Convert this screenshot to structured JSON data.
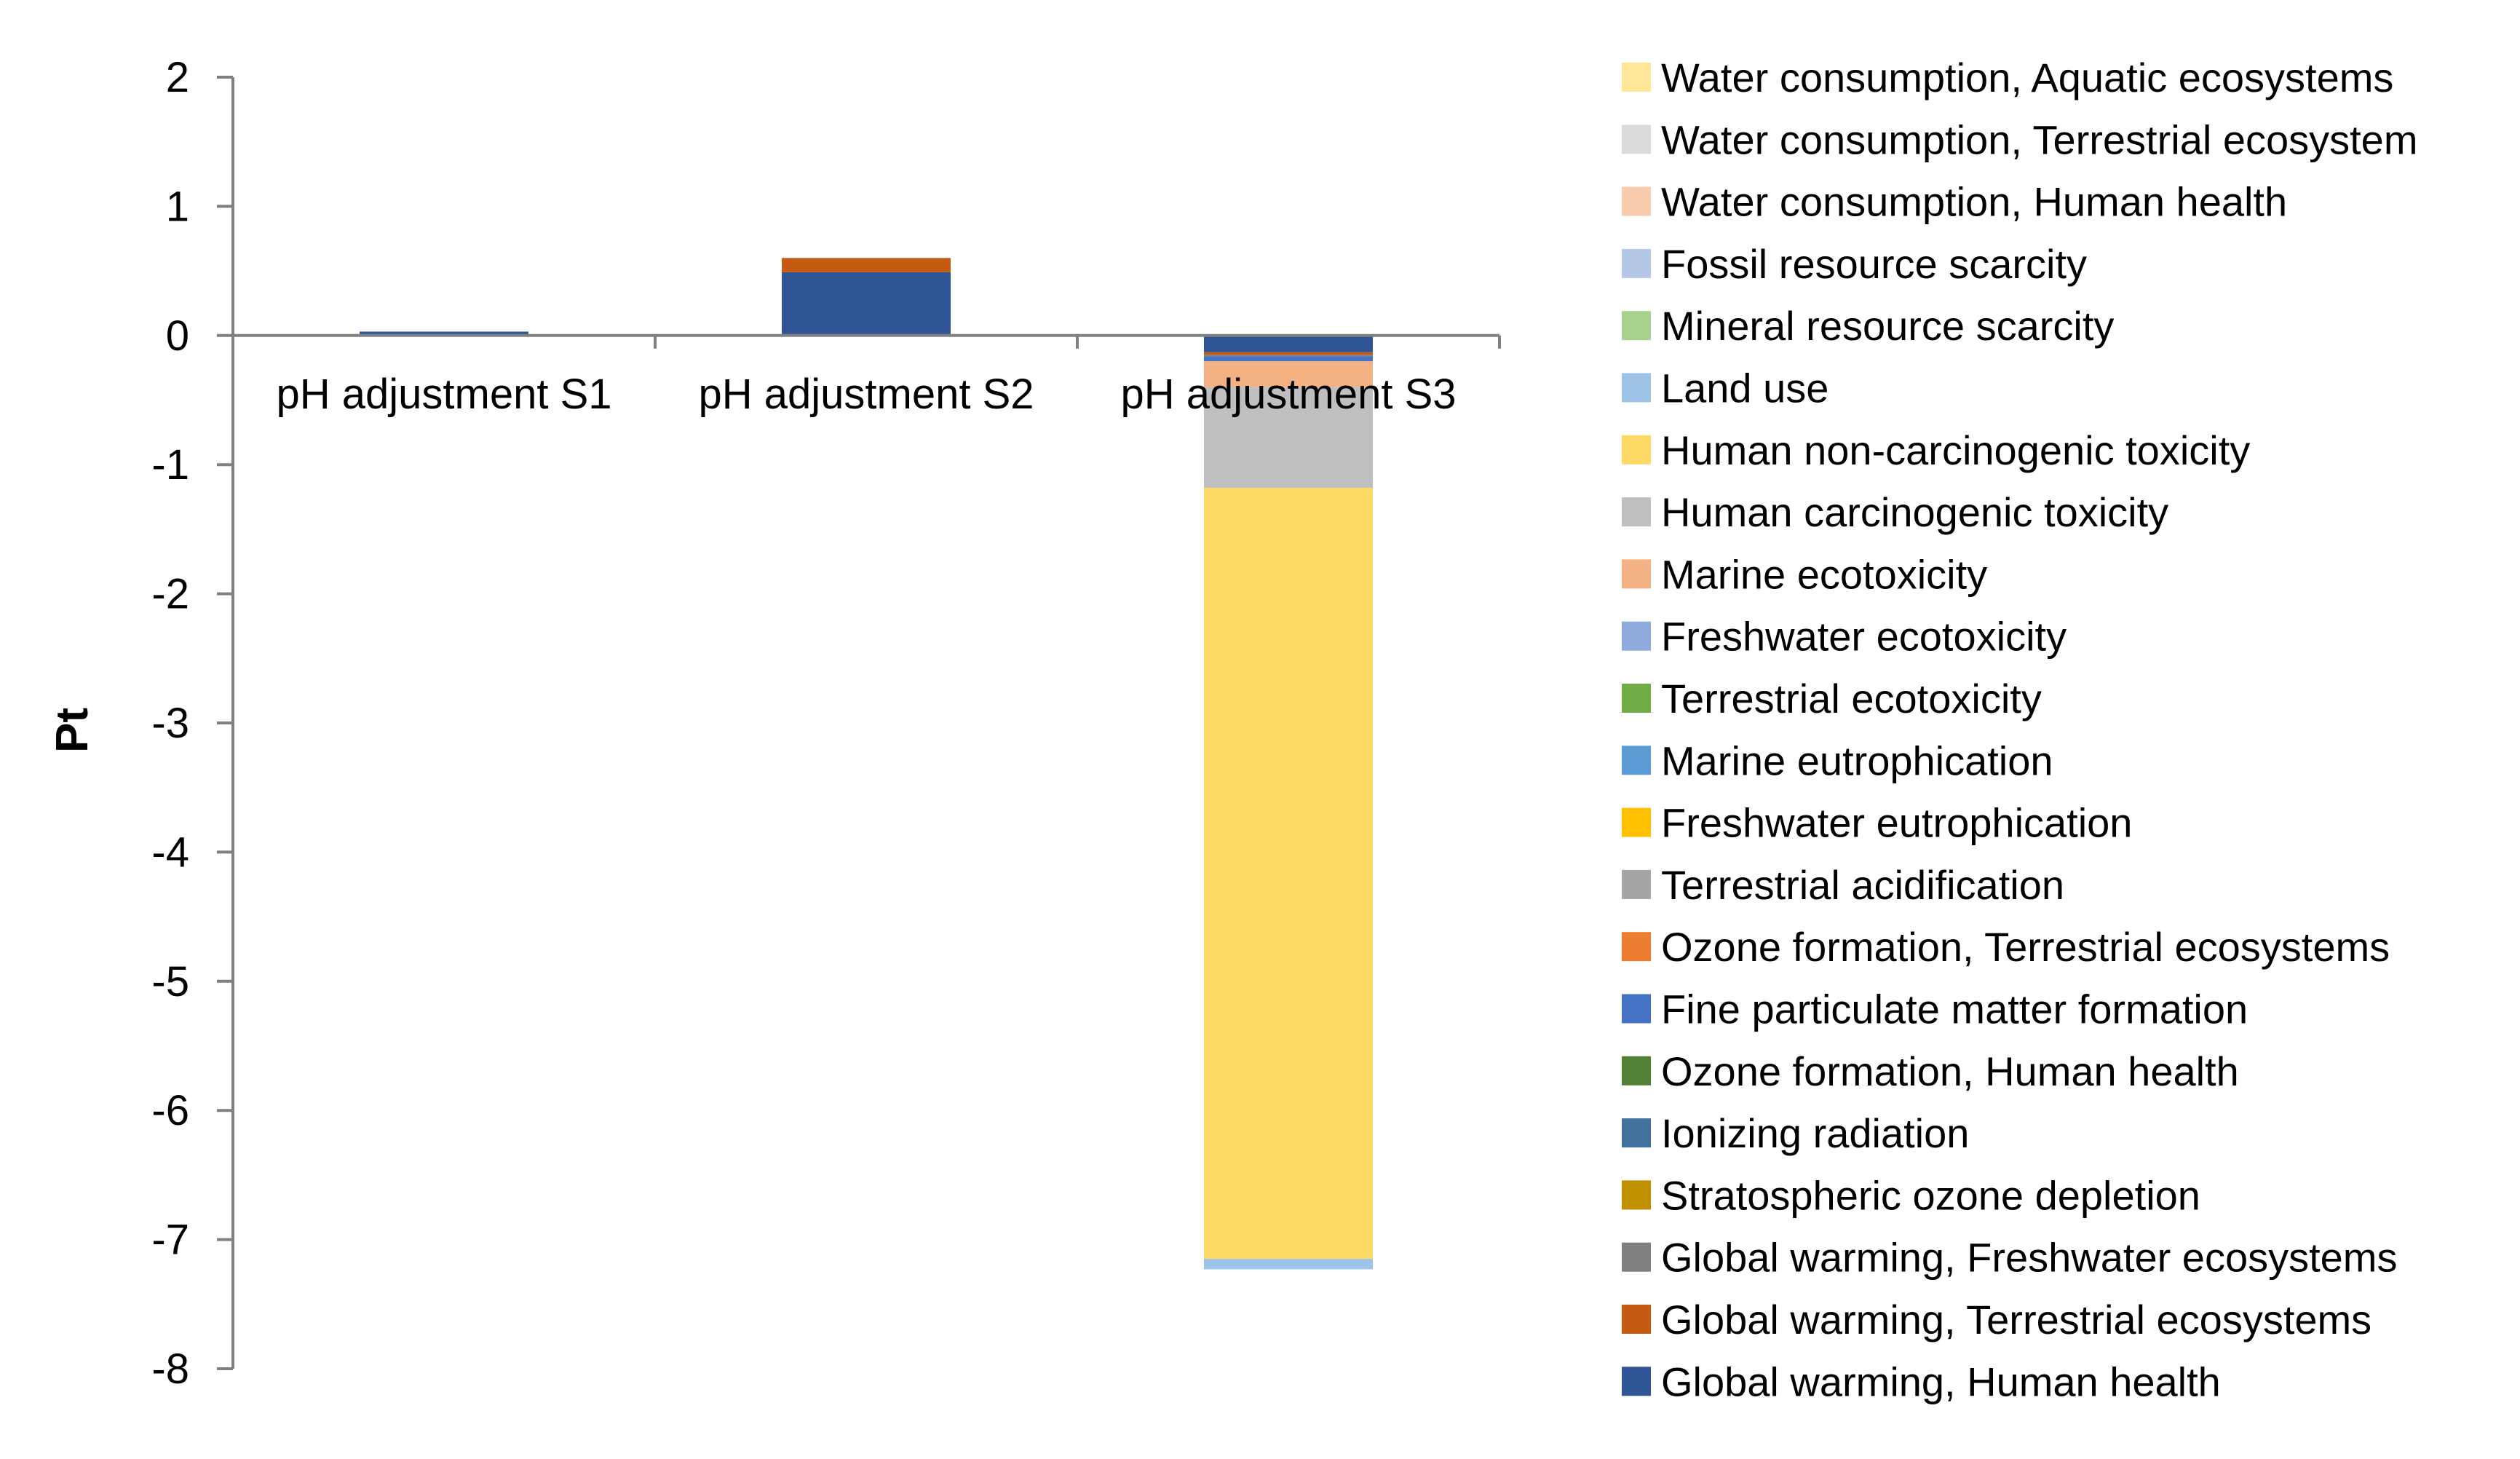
{
  "chart_data": {
    "type": "stacked-bar",
    "ylabel": "Pt",
    "ylim": [
      -8,
      2
    ],
    "yticks": [
      2,
      1,
      0,
      -1,
      -2,
      -3,
      -4,
      -5,
      -6,
      -7,
      -8
    ],
    "categories": [
      "pH adjustment  S1",
      "pH adjustment  S2",
      "pH adjustment S3"
    ],
    "legend_position": "right",
    "series": [
      {
        "name": "Global warming, Human health",
        "color": "#2F5597",
        "values": [
          0.03,
          0.49,
          -0.13
        ]
      },
      {
        "name": "Global warming, Terrestrial ecosystems",
        "color": "#C55A11",
        "values": [
          0.0,
          0.11,
          -0.02
        ]
      },
      {
        "name": "Global warming, Freshwater ecosystems",
        "color": "#7F7F7F",
        "values": [
          0.0,
          0.0,
          -0.01
        ]
      },
      {
        "name": "Stratospheric ozone depletion",
        "color": "#BF9000",
        "values": [
          0.0,
          0.0,
          0.0
        ]
      },
      {
        "name": "Ionizing radiation",
        "color": "#41719C",
        "values": [
          0.0,
          0.0,
          0.0
        ]
      },
      {
        "name": "Ozone formation, Human health",
        "color": "#538135",
        "values": [
          0.0,
          0.0,
          0.0
        ]
      },
      {
        "name": "Fine particulate matter formation",
        "color": "#4472C4",
        "values": [
          0.0,
          0.0,
          -0.04
        ]
      },
      {
        "name": "Ozone formation, Terrestrial ecosystems",
        "color": "#ED7D31",
        "values": [
          0.0,
          0.0,
          0.0
        ]
      },
      {
        "name": "Terrestrial acidification",
        "color": "#A5A5A5",
        "values": [
          0.0,
          0.0,
          0.0
        ]
      },
      {
        "name": "Freshwater eutrophication",
        "color": "#FFC000",
        "values": [
          0.0,
          0.0,
          0.0
        ]
      },
      {
        "name": "Marine eutrophication",
        "color": "#5B9BD5",
        "values": [
          0.0,
          0.0,
          0.0
        ]
      },
      {
        "name": "Terrestrial ecotoxicity",
        "color": "#70AD47",
        "values": [
          0.0,
          0.0,
          0.0
        ]
      },
      {
        "name": "Freshwater ecotoxicity",
        "color": "#8FAADC",
        "values": [
          0.0,
          0.0,
          0.0
        ]
      },
      {
        "name": "Marine ecotoxicity",
        "color": "#F4B183",
        "values": [
          0.0,
          0.0,
          -0.2
        ]
      },
      {
        "name": "Human carcinogenic toxicity",
        "color": "#BFBFBF",
        "values": [
          0.0,
          0.0,
          -0.78
        ]
      },
      {
        "name": "Human non-carcinogenic toxicity",
        "color": "#FFD966",
        "values": [
          0.0,
          0.0,
          -5.97
        ]
      },
      {
        "name": "Land use",
        "color": "#9DC3E6",
        "values": [
          0.0,
          0.0,
          -0.08
        ]
      },
      {
        "name": "Mineral resource scarcity",
        "color": "#A9D18E",
        "values": [
          0.0,
          0.0,
          0.0
        ]
      },
      {
        "name": "Fossil resource scarcity",
        "color": "#B4C7E7",
        "values": [
          0.0,
          0.0,
          0.0
        ]
      },
      {
        "name": "Water consumption, Human health",
        "color": "#F8CBAD",
        "values": [
          0.0,
          0.0,
          0.0
        ]
      },
      {
        "name": "Water consumption, Terrestrial ecosystem",
        "color": "#DBDBDB",
        "values": [
          0.0,
          0.0,
          0.0
        ]
      },
      {
        "name": "Water consumption, Aquatic ecosystems",
        "color": "#FFE699",
        "values": [
          0.0,
          0.0,
          0.0
        ]
      }
    ]
  }
}
